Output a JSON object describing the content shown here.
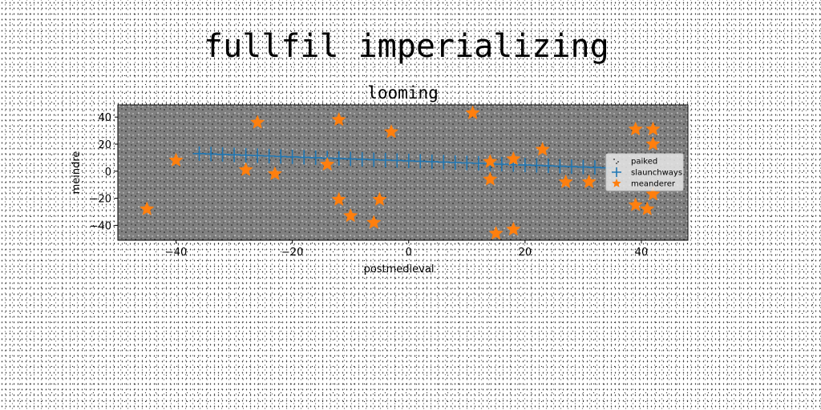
{
  "figure": {
    "title": "fullfil imperializing"
  },
  "chart_data": {
    "type": "scatter",
    "title": "looming",
    "xlabel": "postmedieval",
    "ylabel": "meindre",
    "xlim": [
      -50,
      48
    ],
    "ylim": [
      -51,
      49
    ],
    "xticks": [
      -40,
      -20,
      0,
      20,
      40
    ],
    "yticks": [
      -40,
      -20,
      0,
      20,
      40
    ],
    "background_color": "#808080",
    "legend_position": "center-right",
    "series": [
      {
        "name": "paiked",
        "marker": "dot",
        "color": "#000000",
        "note": "dense dots filling the axes area"
      },
      {
        "name": "slaunchways",
        "marker": "plus",
        "color": "#1f77b4",
        "x": [
          -36,
          -34,
          -32,
          -30,
          -28,
          -26,
          -24,
          -22,
          -20,
          -18,
          -16,
          -14,
          -12,
          -10,
          -8,
          -6,
          -4,
          -2,
          0,
          2,
          4,
          6,
          8,
          10,
          12,
          14,
          16,
          18,
          20,
          22,
          24,
          26,
          28,
          30,
          32,
          34
        ],
        "y": [
          13,
          12.7,
          12.4,
          12.1,
          11.8,
          11.5,
          11.2,
          10.9,
          10.6,
          10.3,
          10,
          9.7,
          9.4,
          9.1,
          8.8,
          8.5,
          8.2,
          7.9,
          7.6,
          7.3,
          7,
          6.7,
          6.4,
          6.1,
          5.8,
          5.5,
          5.2,
          4.9,
          4.6,
          4.3,
          4,
          3.7,
          3.4,
          3.1,
          2.8,
          2.5
        ]
      },
      {
        "name": "meanderer",
        "marker": "star",
        "color": "#ff7f0e",
        "x": [
          -45,
          -40,
          -28,
          -26,
          -23,
          -14,
          -12,
          -12,
          -10,
          -6,
          -5,
          -3,
          11,
          14,
          14,
          15,
          18,
          18,
          23,
          27,
          31,
          39,
          39,
          41,
          42,
          42,
          42
        ],
        "y": [
          -28,
          8,
          1,
          36,
          -2,
          5,
          38,
          -21,
          -33,
          -38,
          -21,
          29,
          43,
          7,
          -6,
          -46,
          9,
          -43,
          16,
          -8,
          -8,
          31,
          -25,
          -28,
          -17,
          20,
          31
        ]
      }
    ]
  }
}
